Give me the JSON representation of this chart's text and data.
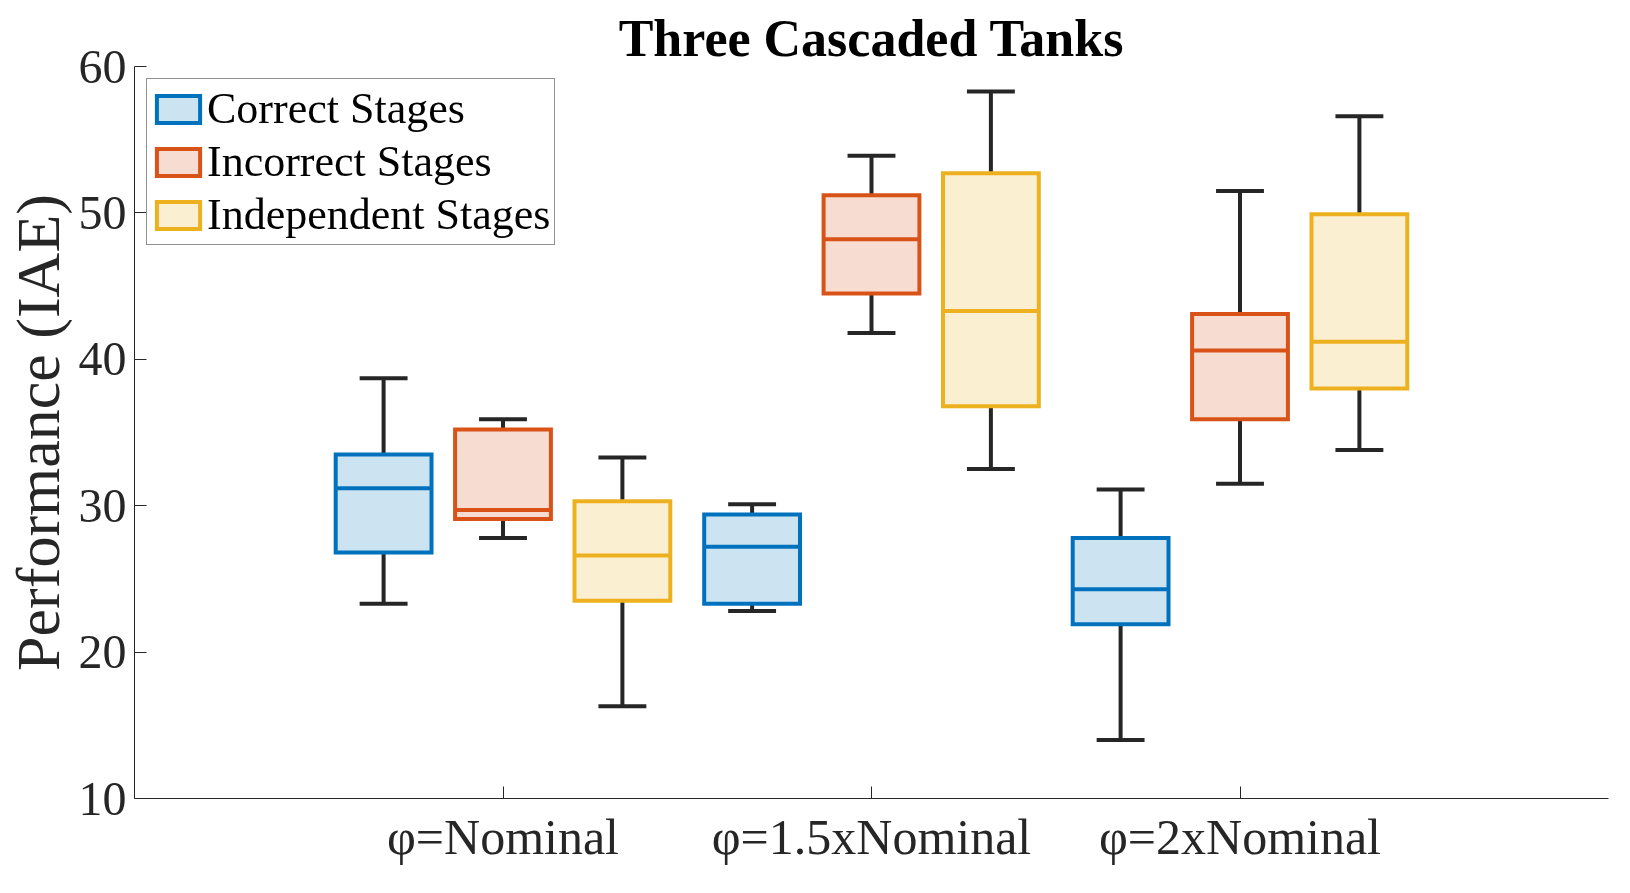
{
  "chart_data": {
    "type": "box",
    "title": "Three Cascaded Tanks",
    "ylabel": "Performance (IAE)",
    "categories": [
      "φ=Nominal",
      "φ=1.5xNominal",
      "φ=2xNominal"
    ],
    "ylim": [
      10,
      60
    ],
    "yticks": [
      10,
      20,
      30,
      40,
      50,
      60
    ],
    "legend": "top left",
    "series": [
      {
        "name": "Correct Stages",
        "color": "#0072bd",
        "boxes": [
          {
            "low": 23.3,
            "q1": 26.8,
            "median": 31.2,
            "q3": 33.5,
            "high": 38.7
          },
          {
            "low": 22.8,
            "q1": 23.3,
            "median": 27.2,
            "q3": 29.4,
            "high": 30.1
          },
          {
            "low": 14.0,
            "q1": 21.9,
            "median": 24.3,
            "q3": 27.8,
            "high": 31.1
          }
        ]
      },
      {
        "name": "Incorrect Stages",
        "color": "#d95319",
        "boxes": [
          {
            "low": 27.8,
            "q1": 29.1,
            "median": 29.7,
            "q3": 35.2,
            "high": 35.9
          },
          {
            "low": 41.8,
            "q1": 44.5,
            "median": 48.2,
            "q3": 51.2,
            "high": 53.9
          },
          {
            "low": 31.5,
            "q1": 35.9,
            "median": 40.6,
            "q3": 43.1,
            "high": 51.5
          }
        ]
      },
      {
        "name": "Independent Stages",
        "color": "#edb120",
        "boxes": [
          {
            "low": 16.3,
            "q1": 23.5,
            "median": 26.6,
            "q3": 30.3,
            "high": 33.3
          },
          {
            "low": 32.5,
            "q1": 36.8,
            "median": 43.3,
            "q3": 52.7,
            "high": 58.3
          },
          {
            "low": 33.8,
            "q1": 38.0,
            "median": 41.2,
            "q3": 49.9,
            "high": 56.6
          }
        ]
      }
    ]
  }
}
